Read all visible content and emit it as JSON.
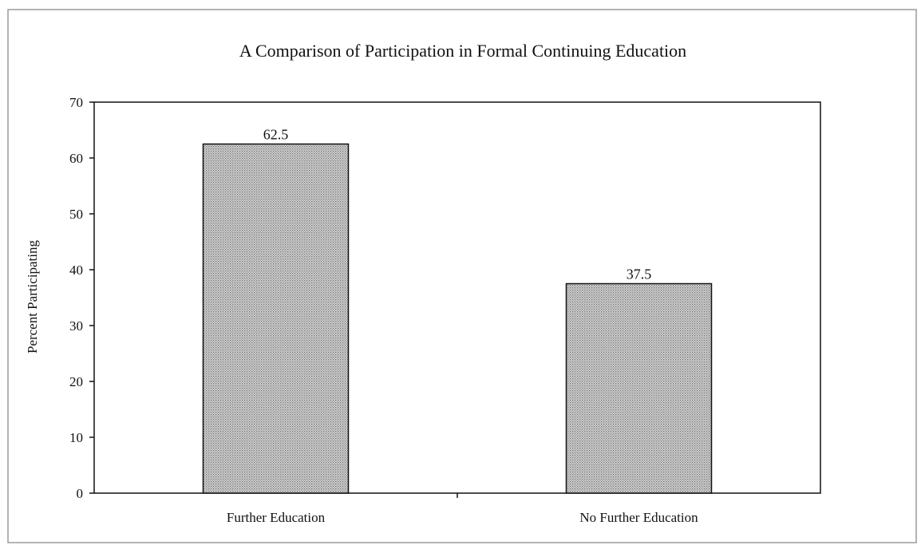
{
  "chart_data": {
    "type": "bar",
    "title": "A Comparison of Participation in Formal Continuing Education",
    "xlabel": "",
    "ylabel": "Percent Participating",
    "categories": [
      "Further Education",
      "No Further Education"
    ],
    "values": [
      62.5,
      37.5
    ],
    "data_labels": [
      "62.5",
      "37.5"
    ],
    "ylim": [
      0,
      70
    ],
    "yticks": [
      0,
      10,
      20,
      30,
      40,
      50,
      60,
      70
    ],
    "ytick_labels": [
      "0",
      "10",
      "20",
      "30",
      "40",
      "50",
      "60",
      "70"
    ],
    "grid": false,
    "legend": "none",
    "bar_fill": "#bdbdbd",
    "bar_stroke": "#111111"
  }
}
